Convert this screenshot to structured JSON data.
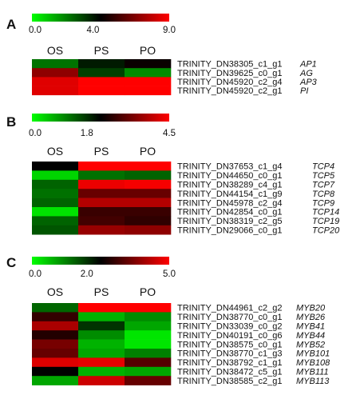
{
  "chart_data": [
    {
      "type": "heatmap",
      "panel_label": "A",
      "color_scale": {
        "min": 0.0,
        "mid": 4.0,
        "max": 9.0,
        "tick_labels": [
          "0.0",
          "4.0",
          "9.0"
        ],
        "colors": [
          "#00ff00",
          "#000000",
          "#ff0000"
        ]
      },
      "columns": [
        "OS",
        "PS",
        "PO"
      ],
      "rows": [
        {
          "id": "TRINITY_DN38305_c1_g1",
          "gene": "AP1",
          "values": [
            2.2,
            3.6,
            4.2
          ]
        },
        {
          "id": "TRINITY_DN39625_c0_g1",
          "gene": "AG",
          "values": [
            6.8,
            3.0,
            1.8
          ]
        },
        {
          "id": "TRINITY_DN45920_c2_g4",
          "gene": "AP3",
          "values": [
            8.4,
            9.0,
            9.0
          ]
        },
        {
          "id": "TRINITY_DN45920_c2_g1",
          "gene": "PI",
          "values": [
            8.4,
            9.0,
            9.0
          ]
        }
      ]
    },
    {
      "type": "heatmap",
      "panel_label": "B",
      "color_scale": {
        "min": 0.0,
        "mid": 1.8,
        "max": 4.5,
        "tick_labels": [
          "0.0",
          "1.8",
          "4.5"
        ],
        "colors": [
          "#00ff00",
          "#000000",
          "#ff0000"
        ]
      },
      "columns": [
        "OS",
        "PS",
        "PO"
      ],
      "rows": [
        {
          "id": "TRINITY_DN37653_c1_g4",
          "gene": "TCP4",
          "values": [
            1.8,
            4.5,
            4.5
          ]
        },
        {
          "id": "TRINITY_DN44650_c0_g1",
          "gene": "TCP5",
          "values": [
            0.3,
            1.0,
            1.1
          ]
        },
        {
          "id": "TRINITY_DN38289_c4_g1",
          "gene": "TCP7",
          "values": [
            1.1,
            4.3,
            4.4
          ]
        },
        {
          "id": "TRINITY_DN44154_c1_g9",
          "gene": "TCP8",
          "values": [
            1.0,
            2.9,
            2.9
          ]
        },
        {
          "id": "TRINITY_DN45978_c2_g4",
          "gene": "TCP9",
          "values": [
            1.1,
            3.7,
            3.7
          ]
        },
        {
          "id": "TRINITY_DN42854_c0_g1",
          "gene": "TCP14",
          "values": [
            0.2,
            2.4,
            2.4
          ]
        },
        {
          "id": "TRINITY_DN38319_c2_g5",
          "gene": "TCP19",
          "values": [
            1.1,
            2.5,
            2.3
          ]
        },
        {
          "id": "TRINITY_DN29066_c0_g1",
          "gene": "TCP20",
          "values": [
            1.2,
            3.4,
            3.3
          ]
        }
      ]
    },
    {
      "type": "heatmap",
      "panel_label": "C",
      "color_scale": {
        "min": 0.0,
        "mid": 2.0,
        "max": 5.0,
        "tick_labels": [
          "0.0",
          "2.0",
          "5.0"
        ],
        "colors": [
          "#00ff00",
          "#000000",
          "#ff0000"
        ]
      },
      "columns": [
        "OS",
        "PS",
        "PO"
      ],
      "rows": [
        {
          "id": "TRINITY_DN44961_c2_g2",
          "gene": "MYB20",
          "values": [
            1.2,
            5.0,
            5.0
          ]
        },
        {
          "id": "TRINITY_DN38770_c0_g1",
          "gene": "MYB26",
          "values": [
            2.6,
            0.6,
            0.9
          ]
        },
        {
          "id": "TRINITY_DN33039_c0_g2",
          "gene": "MYB41",
          "values": [
            4.0,
            1.6,
            0.7
          ]
        },
        {
          "id": "TRINITY_DN40191_c0_g6",
          "gene": "MYB44",
          "values": [
            2.4,
            0.9,
            0.2
          ]
        },
        {
          "id": "TRINITY_DN38575_c0_g1",
          "gene": "MYB52",
          "values": [
            3.4,
            0.6,
            0.2
          ]
        },
        {
          "id": "TRINITY_DN38770_c1_g3",
          "gene": "MYB101",
          "values": [
            3.2,
            0.7,
            1.0
          ]
        },
        {
          "id": "TRINITY_DN38792_c1_g1",
          "gene": "MYB108",
          "values": [
            4.6,
            4.7,
            3.0
          ]
        },
        {
          "id": "TRINITY_DN38472_c5_g1",
          "gene": "MYB111",
          "values": [
            2.0,
            0.6,
            0.7
          ]
        },
        {
          "id": "TRINITY_DN38585_c2_g1",
          "gene": "MYB113",
          "values": [
            0.7,
            4.4,
            3.2
          ]
        }
      ]
    }
  ]
}
